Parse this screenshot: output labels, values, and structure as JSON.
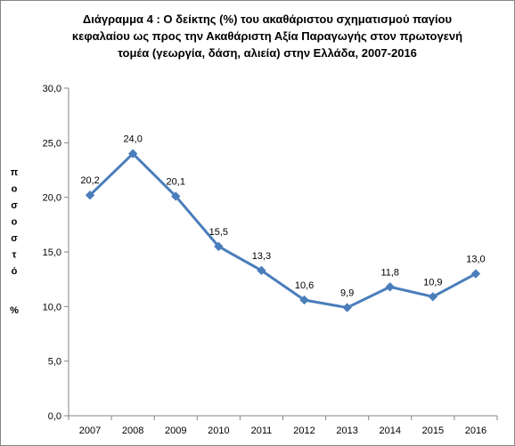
{
  "chart_data": {
    "type": "line",
    "title_lines": [
      "Διάγραμμα 4 : Ο δείκτης (%) του ακαθάριστου σχηματισμού παγίου",
      "κεφαλαίου ως προς την  Ακαθάριστη Αξία Παραγωγής στον πρωτογενή",
      "τομέα (γεωργία, δάση, αλιεία) στην Ελλάδα, 2007-2016"
    ],
    "xlabel": "",
    "ylabel": "ποσοστό",
    "ylabel_unit": "%",
    "categories": [
      "2007",
      "2008",
      "2009",
      "2010",
      "2011",
      "2012",
      "2013",
      "2014",
      "2015",
      "2016"
    ],
    "series": [
      {
        "values": [
          20.2,
          24.0,
          20.1,
          15.5,
          13.3,
          10.6,
          9.9,
          11.8,
          10.9,
          13.0
        ],
        "data_labels": [
          "20,2",
          "24,0",
          "20,1",
          "15,5",
          "13,3",
          "10,6",
          "9,9",
          "11,8",
          "10,9",
          "13,0"
        ],
        "color": "#4A7EBB"
      }
    ],
    "ylim": [
      0,
      30
    ],
    "yticks": [
      0,
      5,
      10,
      15,
      20,
      25,
      30
    ],
    "ytick_labels": [
      "0,0",
      "5,0",
      "10,0",
      "15,0",
      "20,0",
      "25,0",
      "30,0"
    ],
    "grid": false,
    "legend": "none",
    "marker": "diamond"
  }
}
